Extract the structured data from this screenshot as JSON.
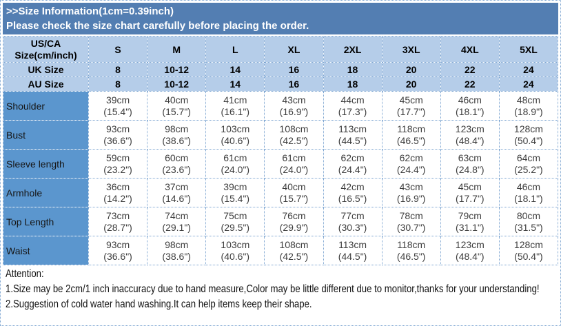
{
  "title": {
    "line1": ">>Size Information(1cm=0.39inch)",
    "line2": "Please check the size chart carefully before placing the order."
  },
  "table": {
    "corner_line1": "US/CA",
    "corner_line2": "Size(cm/inch)",
    "size_labels": [
      "S",
      "M",
      "L",
      "XL",
      "2XL",
      "3XL",
      "4XL",
      "5XL"
    ],
    "region_rows": [
      {
        "label": "UK Size",
        "values": [
          "8",
          "10-12",
          "14",
          "16",
          "18",
          "20",
          "22",
          "24"
        ]
      },
      {
        "label": "AU Size",
        "values": [
          "8",
          "10-12",
          "14",
          "16",
          "18",
          "20",
          "22",
          "24"
        ]
      }
    ],
    "measurement_rows": [
      {
        "label": "Shoulder",
        "cells": [
          [
            "39cm",
            "(15.4\")"
          ],
          [
            "40cm",
            "(15.7\")"
          ],
          [
            "41cm",
            "(16.1\")"
          ],
          [
            "43cm",
            "(16.9\")"
          ],
          [
            "44cm",
            "(17.3\")"
          ],
          [
            "45cm",
            "(17.7\")"
          ],
          [
            "46cm",
            "(18.1\")"
          ],
          [
            "48cm",
            "(18.9\")"
          ]
        ]
      },
      {
        "label": "Bust",
        "cells": [
          [
            "93cm",
            "(36.6\")"
          ],
          [
            "98cm",
            "(38.6\")"
          ],
          [
            "103cm",
            "(40.6\")"
          ],
          [
            "108cm",
            "(42.5\")"
          ],
          [
            "113cm",
            "(44.5\")"
          ],
          [
            "118cm",
            "(46.5\")"
          ],
          [
            "123cm",
            "(48.4\")"
          ],
          [
            "128cm",
            "(50.4\")"
          ]
        ]
      },
      {
        "label": "Sleeve length",
        "cells": [
          [
            "59cm",
            "(23.2\")"
          ],
          [
            "60cm",
            "(23.6\")"
          ],
          [
            "61cm",
            "(24.0\")"
          ],
          [
            "61cm",
            "(24.0\")"
          ],
          [
            "62cm",
            "(24.4\")"
          ],
          [
            "62cm",
            "(24.4\")"
          ],
          [
            "63cm",
            "(24.8\")"
          ],
          [
            "64cm",
            "(25.2\")"
          ]
        ]
      },
      {
        "label": "Armhole",
        "cells": [
          [
            "36cm",
            "(14.2\")"
          ],
          [
            "37cm",
            "(14.6\")"
          ],
          [
            "39cm",
            "(15.4\")"
          ],
          [
            "40cm",
            "(15.7\")"
          ],
          [
            "42cm",
            "(16.5\")"
          ],
          [
            "43cm",
            "(16.9\")"
          ],
          [
            "45cm",
            "(17.7\")"
          ],
          [
            "46cm",
            "(18.1\")"
          ]
        ]
      },
      {
        "label": "Top Length",
        "cells": [
          [
            "73cm",
            "(28.7\")"
          ],
          [
            "74cm",
            "(29.1\")"
          ],
          [
            "75cm",
            "(29.5\")"
          ],
          [
            "76cm",
            "(29.9\")"
          ],
          [
            "77cm",
            "(30.3\")"
          ],
          [
            "78cm",
            "(30.7\")"
          ],
          [
            "79cm",
            "(31.1\")"
          ],
          [
            "80cm",
            "(31.5\")"
          ]
        ]
      },
      {
        "label": "Waist",
        "cells": [
          [
            "93cm",
            "(36.6\")"
          ],
          [
            "98cm",
            "(38.6\")"
          ],
          [
            "103cm",
            "(40.6\")"
          ],
          [
            "108cm",
            "(42.5\")"
          ],
          [
            "113cm",
            "(44.5\")"
          ],
          [
            "118cm",
            "(46.5\")"
          ],
          [
            "123cm",
            "(48.4\")"
          ],
          [
            "128cm",
            "(50.4\")"
          ]
        ]
      }
    ]
  },
  "attention": {
    "heading": "Attention:",
    "line1": "1.Size may be 2cm/1 inch inaccuracy due to hand measure,Color may be little different due to monitor,thanks for your understanding!",
    "line2": "2.Suggestion of cold water hand washing.It can help items keep their shape."
  },
  "colors": {
    "title_bar_bg": "#537eb2",
    "title_text": "#ffffff",
    "header_bg": "#b5cde9",
    "label_bg": "#5b96ce",
    "border_color": "#7aa3d0",
    "data_text": "#3d3d3d"
  }
}
